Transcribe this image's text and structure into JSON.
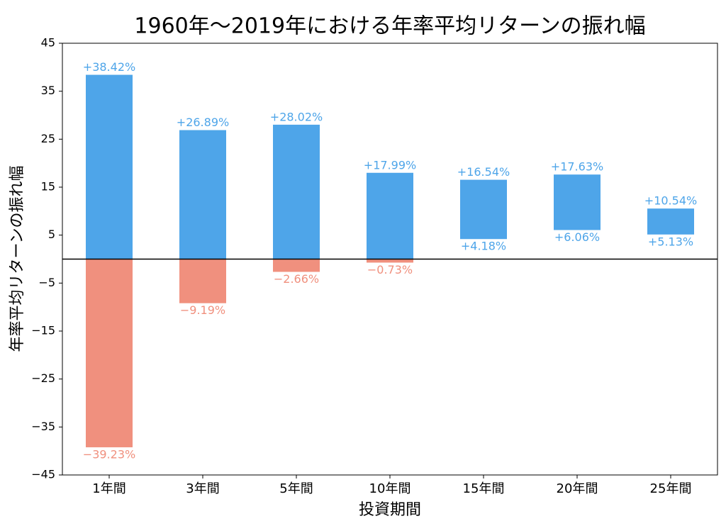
{
  "chart_data": {
    "type": "range_bar",
    "title": "1960年～2019年における年率平均リターンの振れ幅",
    "x_label": "投資期間",
    "y_label": "年率平均リターンの振れ幅",
    "categories": [
      "1年間",
      "3年間",
      "5年間",
      "10年間",
      "15年間",
      "20年間",
      "25年間"
    ],
    "series": [
      {
        "values": [
          38.42,
          26.89,
          28.02,
          17.99,
          16.54,
          17.63,
          10.54
        ],
        "value_labels": [
          "+38.42%",
          "+26.89%",
          "+28.02%",
          "+17.99%",
          "+16.54%",
          "+17.63%",
          "+10.54%"
        ]
      },
      {
        "values": [
          -39.23,
          -9.19,
          -2.66,
          -0.73,
          4.18,
          6.06,
          5.13
        ],
        "value_labels": [
          "−39.23%",
          "−9.19%",
          "−2.66%",
          "−0.73%",
          "+4.18%",
          "+6.06%",
          "+5.13%"
        ]
      }
    ],
    "positive_color": "#4ea5e9",
    "negative_color": "#f0907e",
    "ylim": [
      -45,
      45
    ],
    "yticks": [
      {
        "value": -45,
        "label": "−45"
      },
      {
        "value": -35,
        "label": "−35"
      },
      {
        "value": -25,
        "label": "−25"
      },
      {
        "value": -15,
        "label": "−15"
      },
      {
        "value": -5,
        "label": "−5"
      },
      5,
      15,
      25,
      35,
      45
    ],
    "zero_line": true
  }
}
